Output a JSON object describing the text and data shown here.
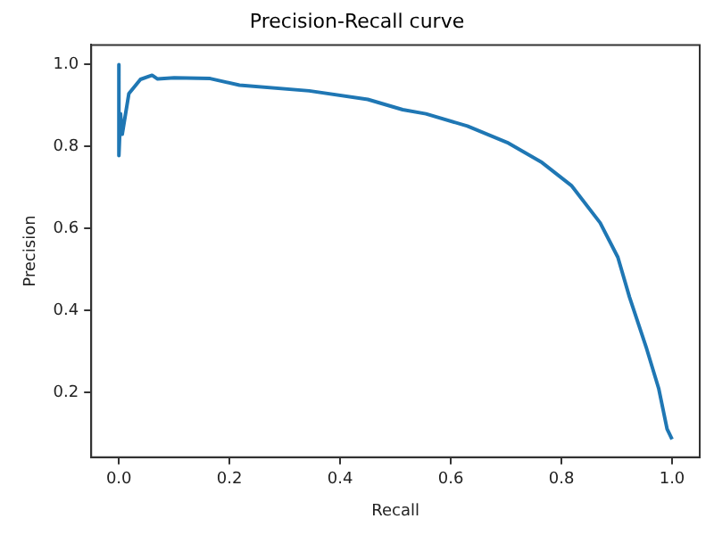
{
  "chart_data": {
    "type": "line",
    "title": "Precision-Recall curve",
    "xlabel": "Recall",
    "ylabel": "Precision",
    "x": [
      0,
      0,
      0.003,
      0.006,
      0.018,
      0.039,
      0.06,
      0.07,
      0.1,
      0.165,
      0.218,
      0.344,
      0.45,
      0.513,
      0.555,
      0.63,
      0.702,
      0.765,
      0.818,
      0.87,
      0.902,
      0.923,
      0.954,
      0.976,
      0.991,
      1.0
    ],
    "series": [
      {
        "color": "#1f77b4",
        "values": [
          1.0,
          0.778,
          0.88,
          0.83,
          0.929,
          0.964,
          0.974,
          0.965,
          0.968,
          0.966,
          0.95,
          0.936,
          0.915,
          0.89,
          0.88,
          0.85,
          0.81,
          0.761,
          0.705,
          0.614,
          0.53,
          0.433,
          0.307,
          0.209,
          0.111,
          0.086
        ]
      }
    ],
    "xlim": [
      -0.05,
      1.05
    ],
    "ylim": [
      0.042,
      1.048
    ],
    "xticks": [
      {
        "value": 0,
        "label": "0.0"
      },
      0.2,
      0.4,
      0.6,
      0.8,
      {
        "value": 1,
        "label": "1.0"
      }
    ],
    "yticks": [
      0.2,
      0.4,
      0.6,
      0.8,
      {
        "value": 1,
        "label": "1.0"
      }
    ],
    "grid": false,
    "legend": false,
    "marker": "none",
    "line_style": "solid"
  }
}
